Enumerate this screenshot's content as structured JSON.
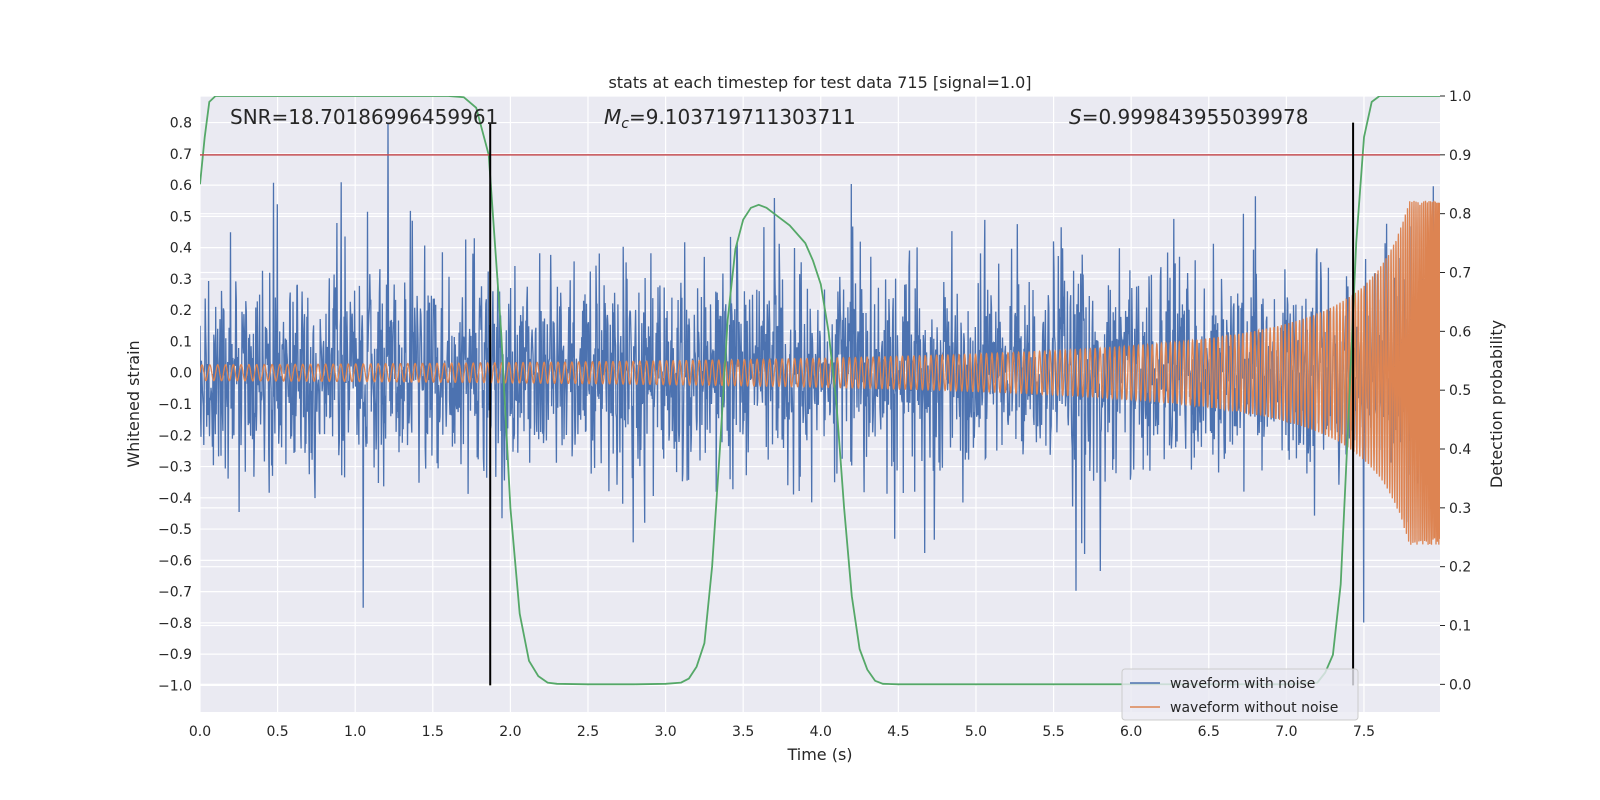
{
  "chart_data": {
    "type": "line",
    "title": "stats at each timestep for test data 715 [signal=1.0]",
    "xlabel": "Time (s)",
    "ylabel": "Whitened strain",
    "y2label": "Detection probability",
    "xlim": [
      0.0,
      7.99
    ],
    "ylim": [
      -1.085,
      0.885
    ],
    "y2lim": [
      -0.047,
      1.0
    ],
    "x_ticks": [
      "0.0",
      "0.5",
      "1.0",
      "1.5",
      "2.0",
      "2.5",
      "3.0",
      "3.5",
      "4.0",
      "4.5",
      "5.0",
      "5.5",
      "6.0",
      "6.5",
      "7.0",
      "7.5"
    ],
    "y_ticks": [
      "0.8",
      "0.7",
      "0.6",
      "0.5",
      "0.4",
      "0.3",
      "0.2",
      "0.1",
      "0.0",
      "−0.1",
      "−0.2",
      "−0.3",
      "−0.4",
      "−0.5",
      "−0.6",
      "−0.7",
      "−0.8",
      "−0.9",
      "−1.0"
    ],
    "y2_ticks": [
      "1.0",
      "0.9",
      "0.8",
      "0.7",
      "0.6",
      "0.5",
      "0.4",
      "0.3",
      "0.2",
      "0.1",
      "0.0"
    ],
    "grid": true,
    "legend_position": "lower-right",
    "annotations": {
      "snr": "SNR=18.70186996459961",
      "mc_symbol": "M",
      "mc_sub": "c",
      "mc_value": "=9.103719711303711",
      "s_symbol": "S",
      "s_value": "=0.999843955039978"
    },
    "threshold_line": {
      "axis": "y2",
      "value": 0.9,
      "color": "#c44e52"
    },
    "vertical_lines": [
      1.87,
      7.43
    ],
    "series": [
      {
        "name": "waveform with noise",
        "color": "#4c72b0",
        "axis": "y",
        "description_range": [
          -1.0,
          0.8
        ]
      },
      {
        "name": "waveform without noise",
        "color": "#dd8452",
        "axis": "y",
        "amplitude_start": 0.025,
        "amplitude_end": 0.55
      },
      {
        "color": "#55a868",
        "axis": "y2",
        "x": [
          0.0,
          0.03,
          0.06,
          0.1,
          0.2,
          0.4,
          0.8,
          1.2,
          1.6,
          1.7,
          1.78,
          1.86,
          1.94,
          2.0,
          2.06,
          2.12,
          2.18,
          2.24,
          2.3,
          2.5,
          2.8,
          3.0,
          3.1,
          3.15,
          3.2,
          3.25,
          3.3,
          3.35,
          3.4,
          3.45,
          3.5,
          3.55,
          3.6,
          3.65,
          3.7,
          3.8,
          3.9,
          3.95,
          4.0,
          4.05,
          4.1,
          4.15,
          4.2,
          4.25,
          4.3,
          4.35,
          4.4,
          4.5,
          5.0,
          6.0,
          7.0,
          7.2,
          7.25,
          7.3,
          7.35,
          7.4,
          7.45,
          7.5,
          7.55,
          7.6,
          7.7,
          7.99
        ],
        "values": [
          0.85,
          0.93,
          0.99,
          1.0,
          1.0,
          1.0,
          1.0,
          1.0,
          1.0,
          0.998,
          0.98,
          0.9,
          0.6,
          0.3,
          0.12,
          0.04,
          0.014,
          0.003,
          0.001,
          0.0,
          0.0,
          0.001,
          0.003,
          0.01,
          0.03,
          0.07,
          0.2,
          0.4,
          0.62,
          0.74,
          0.79,
          0.81,
          0.815,
          0.81,
          0.8,
          0.78,
          0.75,
          0.72,
          0.68,
          0.6,
          0.48,
          0.3,
          0.15,
          0.06,
          0.025,
          0.006,
          0.001,
          0.0,
          0.0,
          0.0,
          0.0,
          0.003,
          0.02,
          0.05,
          0.17,
          0.45,
          0.75,
          0.93,
          0.99,
          1.0,
          1.0,
          1.0
        ]
      }
    ]
  }
}
